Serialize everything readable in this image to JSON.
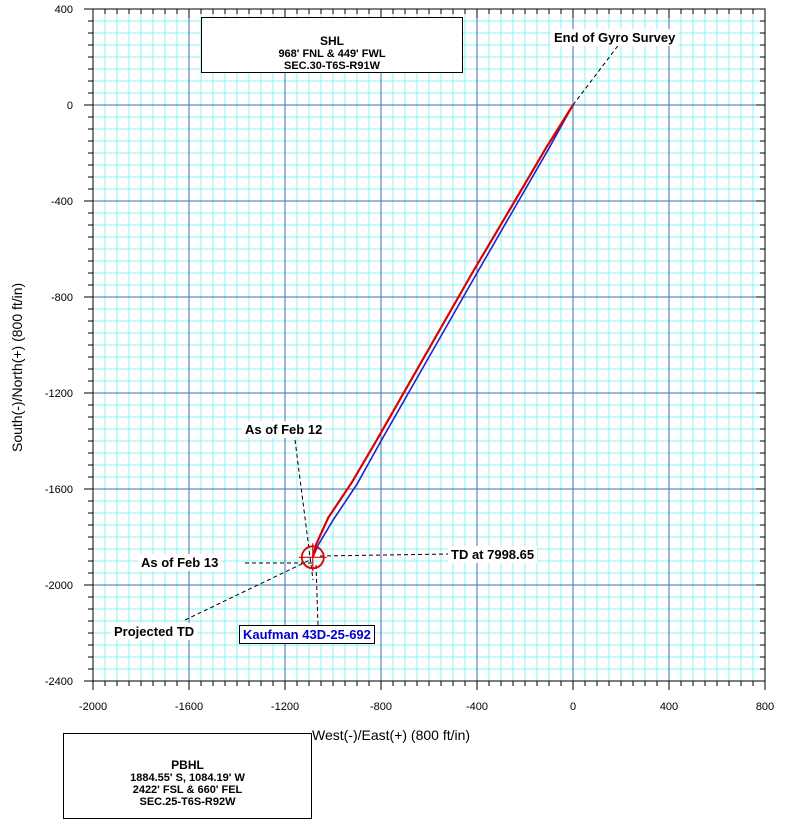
{
  "chart_data": {
    "type": "line",
    "xlabel": "West(-)/East(+) (800 ft/in)",
    "ylabel": "South(-)/North(+) (800 ft/in)",
    "xlim": [
      -2000,
      800
    ],
    "ylim": [
      -2400,
      400
    ],
    "x_ticks": [
      "-2000",
      "-1600",
      "-1200",
      "-800",
      "-400",
      "0",
      "400",
      "800"
    ],
    "y_ticks": [
      "400",
      "0",
      "-400",
      "-800",
      "-1200",
      "-1600",
      "-2000",
      "-2400"
    ],
    "grid": true,
    "series": [
      {
        "color": "#2222cc",
        "x": [
          0,
          -100,
          -250,
          -400,
          -600,
          -800,
          -900,
          -1000,
          -1060,
          -1084.19
        ],
        "y": [
          0,
          -180,
          -440,
          -700,
          -1050,
          -1400,
          -1580,
          -1730,
          -1830,
          -1884.55
        ]
      },
      {
        "color": "#dd0000",
        "x": [
          0,
          -110,
          -260,
          -420,
          -620,
          -820,
          -920,
          -1020,
          -1070,
          -1084.19
        ],
        "y": [
          0,
          -175,
          -430,
          -700,
          -1050,
          -1400,
          -1570,
          -1720,
          -1830,
          -1884.55
        ]
      }
    ],
    "target_marker": {
      "x": -1084.19,
      "y": -1884.55,
      "color": "#dd0000"
    },
    "annotations": {
      "shl": {
        "title": "SHL",
        "lines": [
          "968' FNL & 449' FWL",
          "SEC.30-T6S-R91W"
        ]
      },
      "pbhl": {
        "title": "PBHL",
        "lines": [
          "1884.55' S, 1084.19' W",
          "2422' FSL & 660' FEL",
          "SEC.25-T6S-R92W"
        ]
      },
      "end_gyro": "End of Gyro Survey",
      "feb12": "As of Feb 12",
      "feb13": "As of Feb 13",
      "td": "TD at 7998.65",
      "projected_td": "Projected TD",
      "well_name": "Kaufman 43D-25-692"
    }
  }
}
